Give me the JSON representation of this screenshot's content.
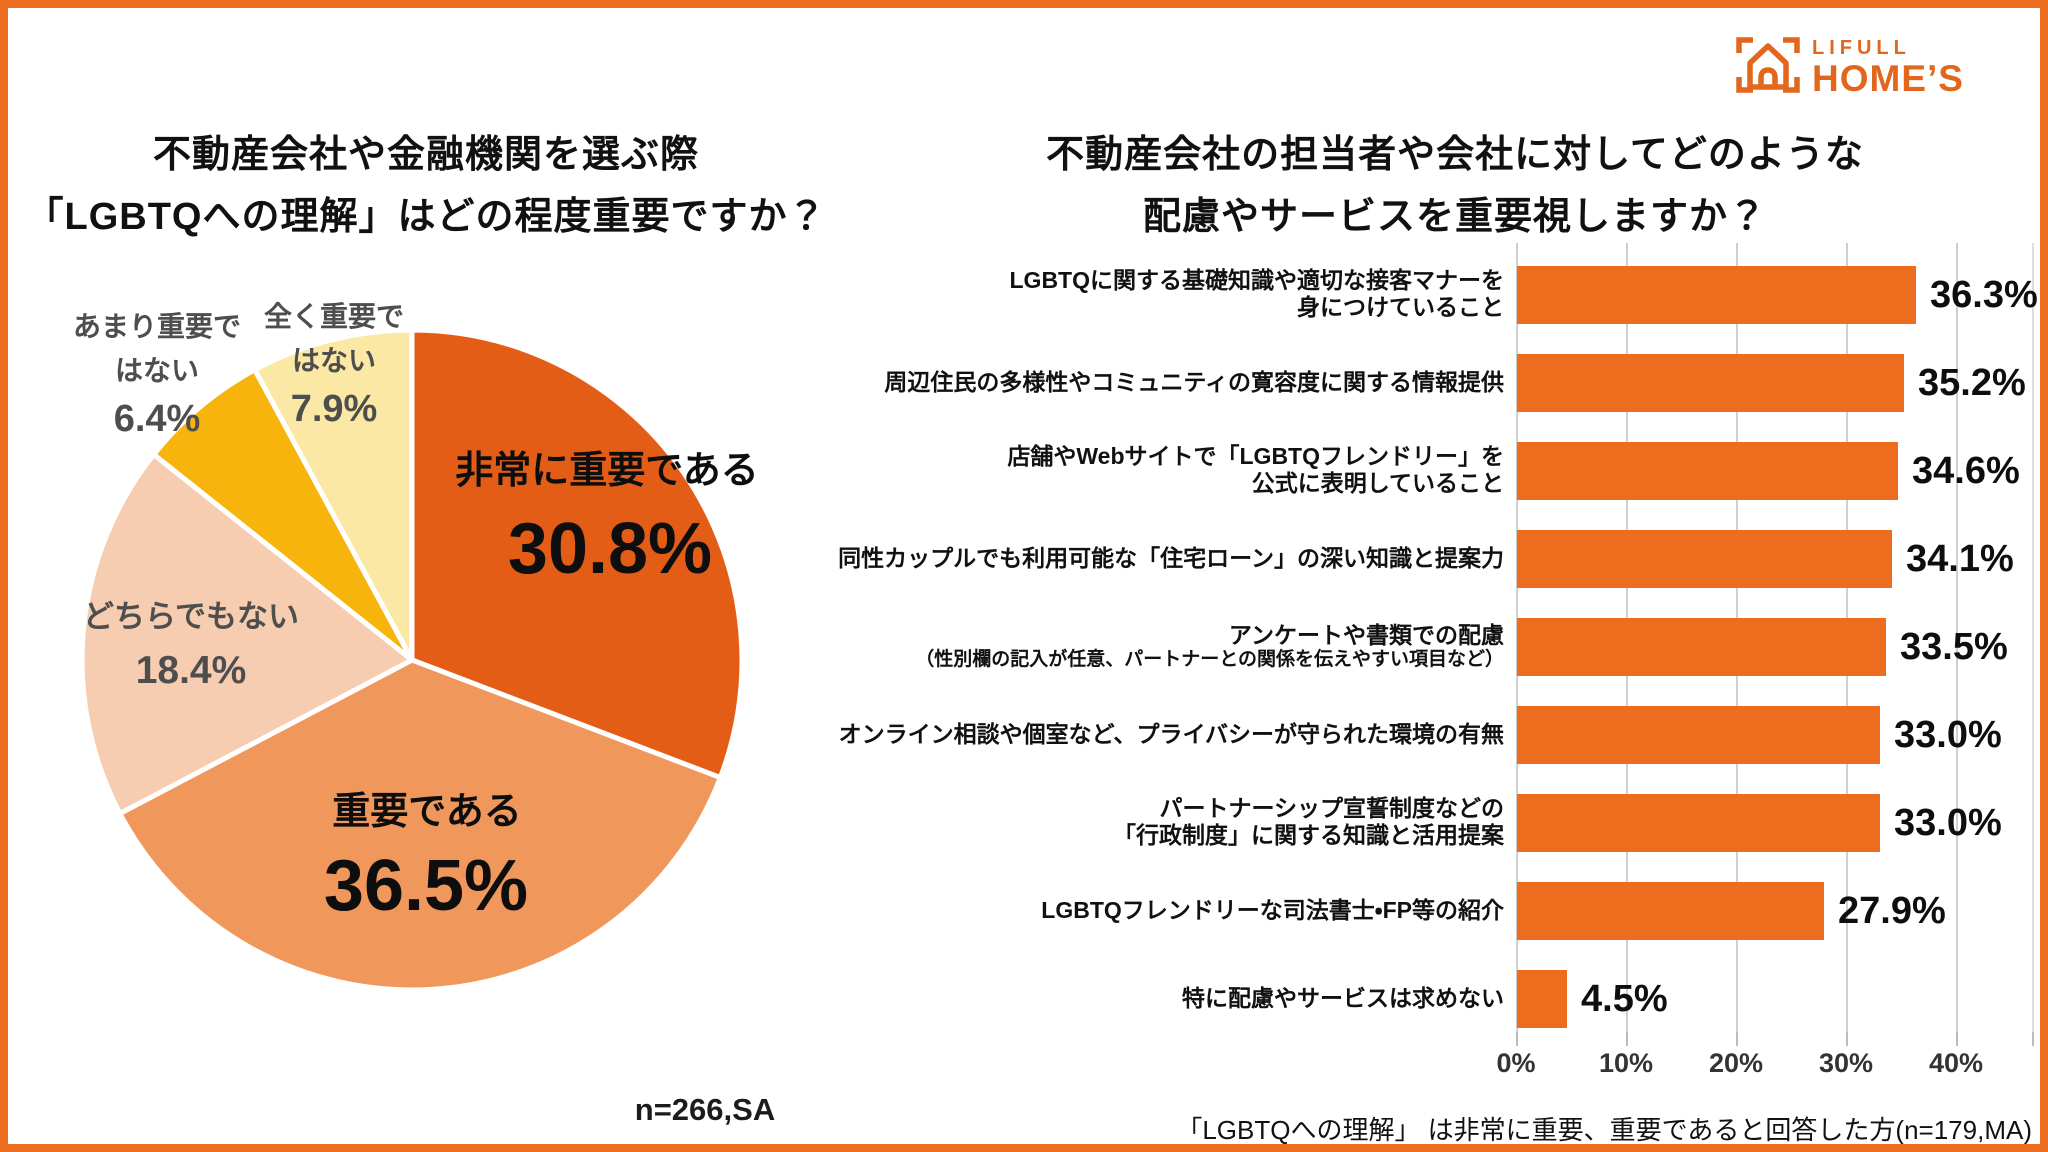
{
  "brand": {
    "line1": "LIFULL",
    "line2": "HOME’S"
  },
  "pie_section": {
    "title_line1": "不動産会社や金融機関を選ぶ際",
    "title_line2": "「LGBTQへの理解」はどの程度重要ですか？",
    "note": "n=266,SA"
  },
  "bar_section": {
    "title_line1": "不動産会社の担当者や会社に対してどのような",
    "title_line2": "配慮やサービスを重要視しますか？",
    "footnote": "「LGBTQへの理解」 は非常に重要、重要であると回答した方(n=179,MA)"
  },
  "colors": {
    "accent_orange": "#ED6C1E",
    "pie_slices": [
      "#E45D17",
      "#F0975C",
      "#F7CDB1",
      "#F6B40D",
      "#FBE8A5"
    ],
    "gridline": "#CFCFCF",
    "side_label_gray": "#4E4E4E",
    "text_black": "#111111",
    "logo_orange": "#E2661C"
  },
  "chart_data": [
    {
      "type": "pie",
      "title": "不動産会社や金融機関を選ぶ際「LGBTQへの理解」はどの程度重要ですか？",
      "n": "n=266,SA",
      "start_angle_deg": 0,
      "direction": "clockwise",
      "slices": [
        {
          "label": "非常に重要である",
          "value": 30.8,
          "display": "30.8%",
          "color": "#E45D17",
          "label_lines": [
            "非常に重要である"
          ]
        },
        {
          "label": "重要である",
          "value": 36.5,
          "display": "36.5%",
          "color": "#F0975C",
          "label_lines": [
            "重要である"
          ]
        },
        {
          "label": "どちらでもない",
          "value": 18.4,
          "display": "18.4%",
          "color": "#F7CDB1",
          "label_lines": [
            "どちらでもない"
          ]
        },
        {
          "label": "あまり重要ではない",
          "value": 6.4,
          "display": "6.4%",
          "color": "#F6B40D",
          "label_lines": [
            "あまり重要で",
            "はない"
          ]
        },
        {
          "label": "全く重要ではない",
          "value": 7.9,
          "display": "7.9%",
          "color": "#FBE8A5",
          "label_lines": [
            "全く重要で",
            "はない"
          ]
        }
      ]
    },
    {
      "type": "bar",
      "orientation": "horizontal",
      "title": "不動産会社の担当者や会社に対してどのような配慮やサービスを重要視しますか？",
      "xlim": [
        0,
        40
      ],
      "x_ticks": [
        "0%",
        "10%",
        "20%",
        "30%",
        "40%"
      ],
      "grid": true,
      "footnote": "「LGBTQへの理解」 は非常に重要、重要であると回答した方(n=179,MA)",
      "bars": [
        {
          "value": 36.3,
          "display": "36.3%",
          "label_lines": [
            {
              "text": "LGBTQに関する基礎知識や適切な接客マナーを",
              "small": false
            },
            {
              "text": "身につけていること",
              "small": false
            }
          ]
        },
        {
          "value": 35.2,
          "display": "35.2%",
          "label_lines": [
            {
              "text": "周辺住民の多様性やコミュニティの寛容度に関する情報提供",
              "small": false
            }
          ]
        },
        {
          "value": 34.6,
          "display": "34.6%",
          "label_lines": [
            {
              "text": "店舗やWebサイトで「LGBTQフレンドリー」を",
              "small": false
            },
            {
              "text": "公式に表明していること",
              "small": false
            }
          ]
        },
        {
          "value": 34.1,
          "display": "34.1%",
          "label_lines": [
            {
              "text": "同性カップルでも利用可能な「住宅ローン」の深い知識と提案力",
              "small": false
            }
          ]
        },
        {
          "value": 33.5,
          "display": "33.5%",
          "label_lines": [
            {
              "text": "アンケートや書類での配慮",
              "small": false
            },
            {
              "text": "（性別欄の記入が任意、パートナーとの関係を伝えやすい項目など）",
              "small": true
            }
          ]
        },
        {
          "value": 33.0,
          "display": "33.0%",
          "label_lines": [
            {
              "text": "オンライン相談や個室など、プライバシーが守られた環境の有無",
              "small": false
            }
          ]
        },
        {
          "value": 33.0,
          "display": "33.0%",
          "label_lines": [
            {
              "text": "パートナーシップ宣誓制度などの",
              "small": false
            },
            {
              "text": "「行政制度」に関する知識と活用提案",
              "small": false
            }
          ]
        },
        {
          "value": 27.9,
          "display": "27.9%",
          "label_lines": [
            {
              "text": "LGBTQフレンドリーな司法書士・FP等の紹介",
              "small": false
            }
          ]
        },
        {
          "value": 4.5,
          "display": "4.5%",
          "label_lines": [
            {
              "text": "特に配慮やサービスは求めない",
              "small": false
            }
          ]
        }
      ]
    }
  ]
}
